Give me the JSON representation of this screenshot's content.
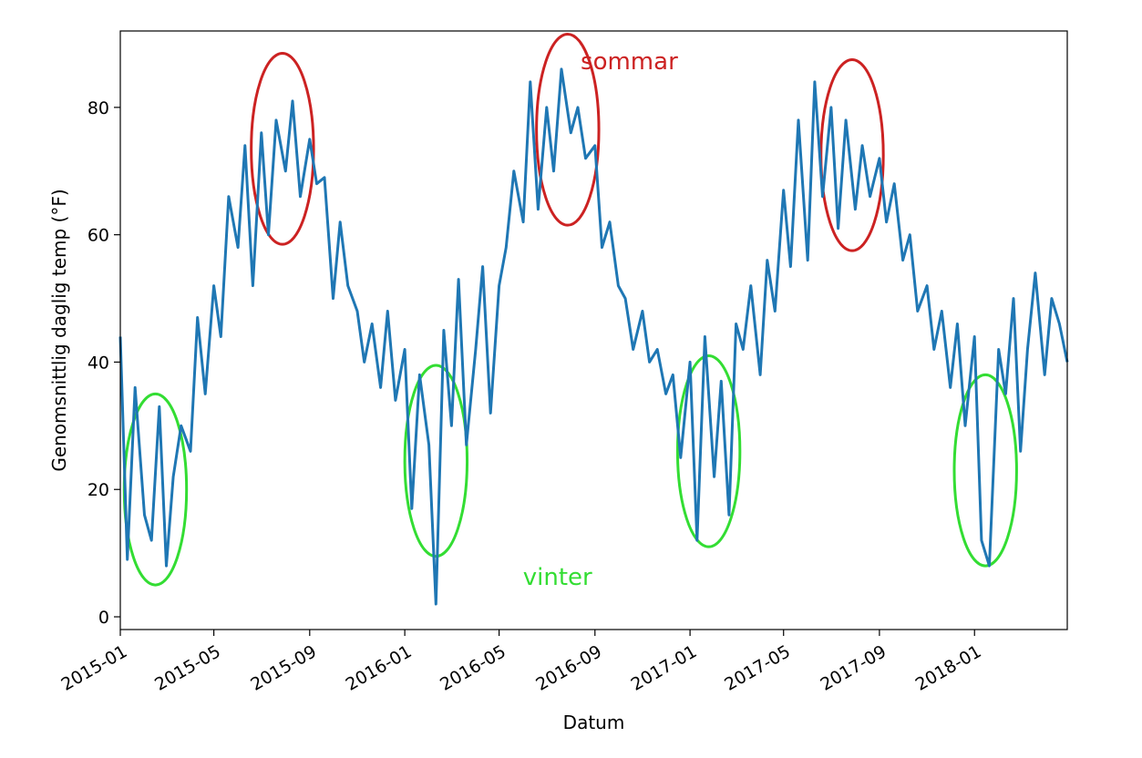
{
  "chart_data": {
    "type": "line",
    "title": "",
    "xlabel": "Datum",
    "ylabel": "Genomsnittlig daglig temp (°F)",
    "xlim": [
      "2015-01-01",
      "2018-04-30"
    ],
    "ylim": [
      -2,
      92
    ],
    "grid": false,
    "legend": "none",
    "x_ticks": [
      "2015-01",
      "2015-05",
      "2015-09",
      "2016-01",
      "2016-05",
      "2016-09",
      "2017-01",
      "2017-05",
      "2017-09",
      "2018-01"
    ],
    "y_ticks": [
      0,
      20,
      40,
      60,
      80
    ],
    "series": [
      {
        "color": "#1f77b4",
        "x": [
          "2015-01-01",
          "2015-01-10",
          "2015-01-20",
          "2015-02-01",
          "2015-02-10",
          "2015-02-20",
          "2015-03-01",
          "2015-03-10",
          "2015-03-20",
          "2015-04-01",
          "2015-04-10",
          "2015-04-20",
          "2015-05-01",
          "2015-05-10",
          "2015-05-20",
          "2015-06-01",
          "2015-06-10",
          "2015-06-20",
          "2015-07-01",
          "2015-07-10",
          "2015-07-20",
          "2015-08-01",
          "2015-08-10",
          "2015-08-20",
          "2015-09-01",
          "2015-09-10",
          "2015-09-20",
          "2015-10-01",
          "2015-10-10",
          "2015-10-20",
          "2015-11-01",
          "2015-11-10",
          "2015-11-20",
          "2015-12-01",
          "2015-12-10",
          "2015-12-20",
          "2016-01-01",
          "2016-01-10",
          "2016-01-20",
          "2016-02-01",
          "2016-02-10",
          "2016-02-20",
          "2016-03-01",
          "2016-03-10",
          "2016-03-20",
          "2016-04-01",
          "2016-04-10",
          "2016-04-20",
          "2016-05-01",
          "2016-05-10",
          "2016-05-20",
          "2016-06-01",
          "2016-06-10",
          "2016-06-20",
          "2016-07-01",
          "2016-07-10",
          "2016-07-20",
          "2016-08-01",
          "2016-08-10",
          "2016-08-20",
          "2016-09-01",
          "2016-09-10",
          "2016-09-20",
          "2016-10-01",
          "2016-10-10",
          "2016-10-20",
          "2016-11-01",
          "2016-11-10",
          "2016-11-20",
          "2016-12-01",
          "2016-12-10",
          "2016-12-20",
          "2017-01-01",
          "2017-01-10",
          "2017-01-20",
          "2017-02-01",
          "2017-02-10",
          "2017-02-20",
          "2017-03-01",
          "2017-03-10",
          "2017-03-20",
          "2017-04-01",
          "2017-04-10",
          "2017-04-20",
          "2017-05-01",
          "2017-05-10",
          "2017-05-20",
          "2017-06-01",
          "2017-06-10",
          "2017-06-20",
          "2017-07-01",
          "2017-07-10",
          "2017-07-20",
          "2017-08-01",
          "2017-08-10",
          "2017-08-20",
          "2017-09-01",
          "2017-09-10",
          "2017-09-20",
          "2017-10-01",
          "2017-10-10",
          "2017-10-20",
          "2017-11-01",
          "2017-11-10",
          "2017-11-20",
          "2017-12-01",
          "2017-12-10",
          "2017-12-20",
          "2018-01-01",
          "2018-01-10",
          "2018-01-20",
          "2018-02-01",
          "2018-02-10",
          "2018-02-20",
          "2018-03-01",
          "2018-03-10",
          "2018-03-20",
          "2018-04-01",
          "2018-04-10",
          "2018-04-20",
          "2018-04-30"
        ],
        "values": [
          44,
          9,
          36,
          16,
          12,
          33,
          8,
          22,
          30,
          26,
          47,
          35,
          52,
          44,
          66,
          58,
          74,
          52,
          76,
          60,
          78,
          70,
          81,
          66,
          75,
          68,
          69,
          50,
          62,
          52,
          48,
          40,
          46,
          36,
          48,
          34,
          42,
          17,
          38,
          27,
          2,
          45,
          30,
          53,
          27,
          42,
          55,
          32,
          52,
          58,
          70,
          62,
          84,
          64,
          80,
          70,
          86,
          76,
          80,
          72,
          74,
          58,
          62,
          52,
          50,
          42,
          48,
          40,
          42,
          35,
          38,
          25,
          40,
          12,
          44,
          22,
          37,
          16,
          46,
          42,
          52,
          38,
          56,
          48,
          67,
          55,
          78,
          56,
          84,
          66,
          80,
          61,
          78,
          64,
          74,
          66,
          72,
          62,
          68,
          56,
          60,
          48,
          52,
          42,
          48,
          36,
          46,
          30,
          44,
          12,
          8,
          42,
          35,
          50,
          26,
          42,
          54,
          38,
          50,
          46,
          40
        ]
      }
    ],
    "annotations": [
      {
        "text": "sommar",
        "color": "#cc2222",
        "at": [
          "2016-10-15",
          86
        ]
      },
      {
        "text": "vinter",
        "color": "#33dd33",
        "at": [
          "2016-07-15",
          5
        ]
      }
    ],
    "highlight_circles": [
      {
        "label": "sommar",
        "color": "#cc2222",
        "center": [
          "2015-07-28",
          73.5
        ],
        "radius_days": 40,
        "radius_f": 15
      },
      {
        "label": "sommar",
        "color": "#cc2222",
        "center": [
          "2016-07-28",
          76.5
        ],
        "radius_days": 40,
        "radius_f": 15
      },
      {
        "label": "sommar",
        "color": "#cc2222",
        "center": [
          "2017-07-28",
          72.5
        ],
        "radius_days": 40,
        "radius_f": 15
      },
      {
        "label": "vinter",
        "color": "#33dd33",
        "center": [
          "2015-02-15",
          20
        ],
        "radius_days": 40,
        "radius_f": 15
      },
      {
        "label": "vinter",
        "color": "#33dd33",
        "center": [
          "2016-02-10",
          24.5
        ],
        "radius_days": 40,
        "radius_f": 15
      },
      {
        "label": "vinter",
        "color": "#33dd33",
        "center": [
          "2017-01-25",
          26
        ],
        "radius_days": 40,
        "radius_f": 15
      },
      {
        "label": "vinter",
        "color": "#33dd33",
        "center": [
          "2018-01-15",
          23
        ],
        "radius_days": 40,
        "radius_f": 15
      }
    ]
  }
}
